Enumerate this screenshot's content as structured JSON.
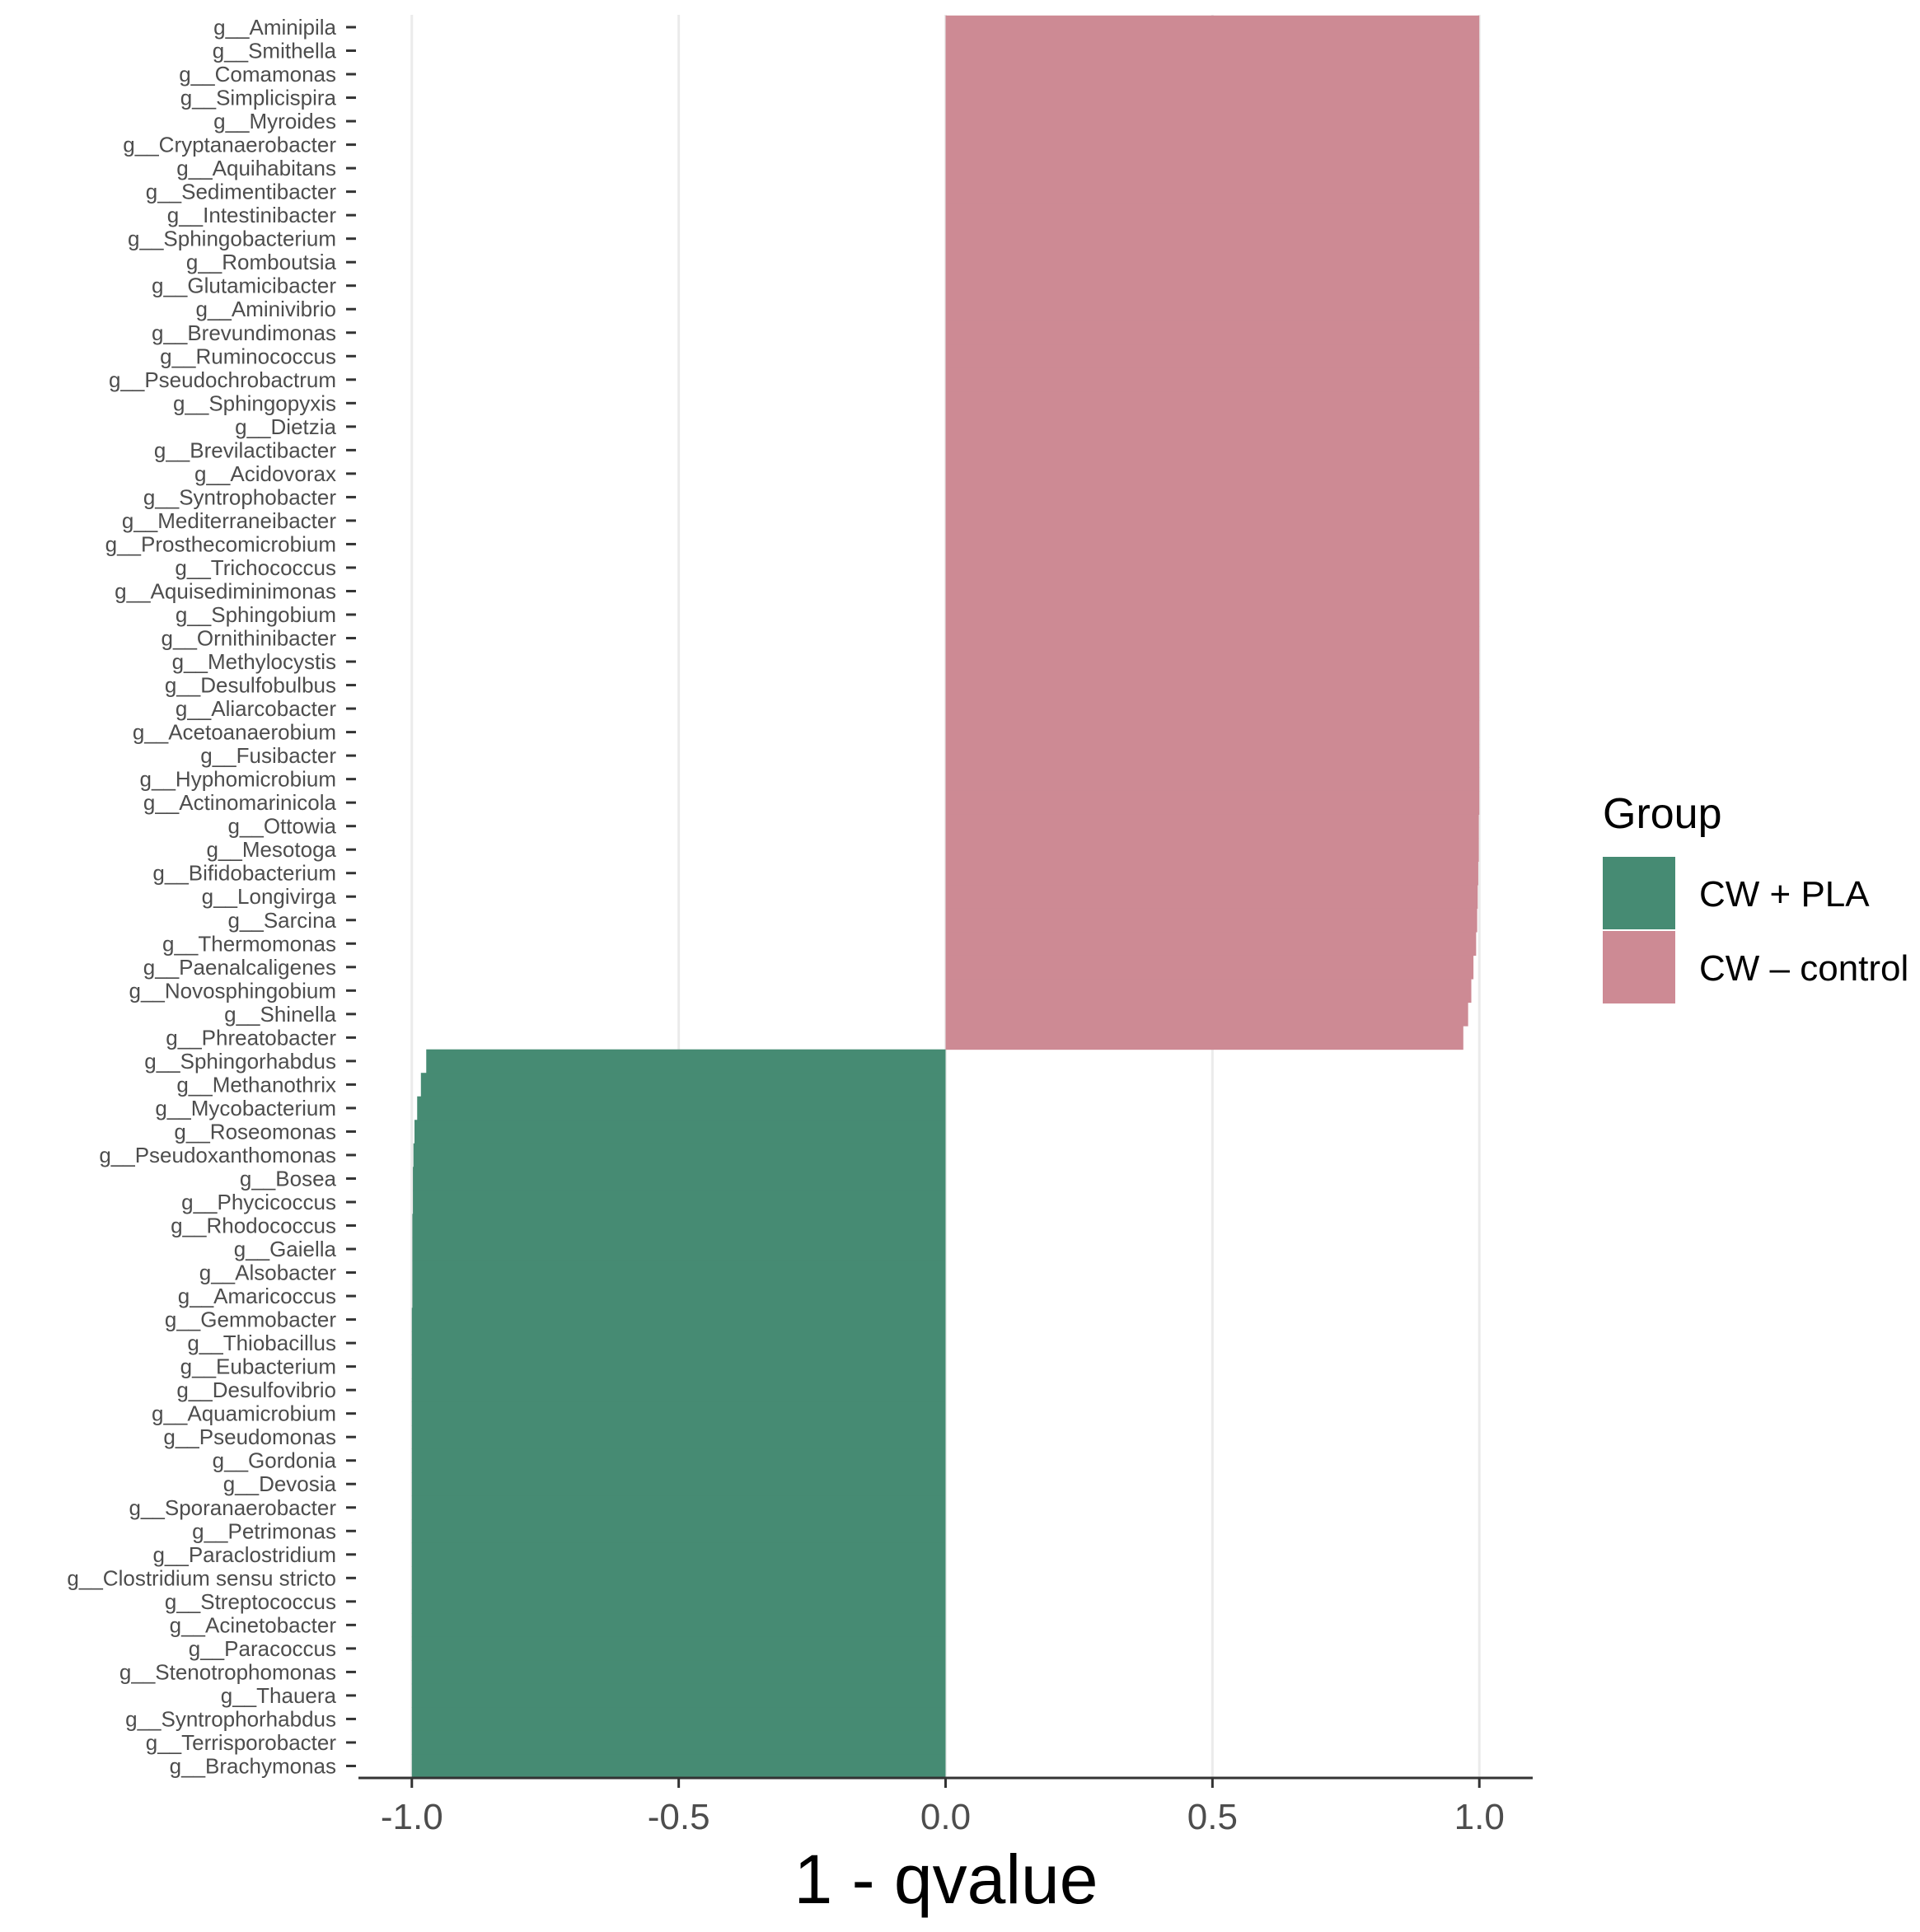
{
  "colors": {
    "cw_pla": "#468b73",
    "cw_control": "#cd8a94",
    "grid": "#ebebeb",
    "axis": "#333333",
    "tick_text": "#4d4d4d"
  },
  "chart_data": {
    "type": "bar",
    "orientation": "horizontal",
    "xlabel": "1 - qvalue",
    "ylabel": "",
    "xlim": [
      -1.1,
      1.1
    ],
    "xticks": [
      -1.0,
      -0.5,
      0.0,
      0.5,
      1.0
    ],
    "xtick_labels": [
      "-1.0",
      "-0.5",
      "0.0",
      "0.5",
      "1.0"
    ],
    "grid": true,
    "legend": {
      "title": "Group",
      "position": "right",
      "entries": [
        {
          "label": "CW + PLA",
          "color_key": "cw_pla"
        },
        {
          "label": "CW – control",
          "color_key": "cw_control"
        }
      ]
    },
    "categories": [
      "g__Aminipila",
      "g__Smithella",
      "g__Comamonas",
      "g__Simplicispira",
      "g__Myroides",
      "g__Cryptanaerobacter",
      "g__Aquihabitans",
      "g__Sedimentibacter",
      "g__Intestinibacter",
      "g__Sphingobacterium",
      "g__Romboutsia",
      "g__Glutamicibacter",
      "g__Aminivibrio",
      "g__Brevundimonas",
      "g__Ruminococcus",
      "g__Pseudochrobactrum",
      "g__Sphingopyxis",
      "g__Dietzia",
      "g__Brevilactibacter",
      "g__Acidovorax",
      "g__Syntrophobacter",
      "g__Mediterraneibacter",
      "g__Prosthecomicrobium",
      "g__Trichococcus",
      "g__Aquisediminimonas",
      "g__Sphingobium",
      "g__Ornithinibacter",
      "g__Methylocystis",
      "g__Desulfobulbus",
      "g__Aliarcobacter",
      "g__Acetoanaerobium",
      "g__Fusibacter",
      "g__Hyphomicrobium",
      "g__Actinomarinicola",
      "g__Ottowia",
      "g__Mesotoga",
      "g__Bifidobacterium",
      "g__Longivirga",
      "g__Sarcina",
      "g__Thermomonas",
      "g__Paenalcaligenes",
      "g__Novosphingobium",
      "g__Shinella",
      "g__Phreatobacter",
      "g__Sphingorhabdus",
      "g__Methanothrix",
      "g__Mycobacterium",
      "g__Roseomonas",
      "g__Pseudoxanthomonas",
      "g__Bosea",
      "g__Phycicoccus",
      "g__Rhodococcus",
      "g__Gaiella",
      "g__Alsobacter",
      "g__Amaricoccus",
      "g__Gemmobacter",
      "g__Thiobacillus",
      "g__Eubacterium",
      "g__Desulfovibrio",
      "g__Aquamicrobium",
      "g__Pseudomonas",
      "g__Gordonia",
      "g__Devosia",
      "g__Sporanaerobacter",
      "g__Petrimonas",
      "g__Paraclostridium",
      "g__Clostridium sensu stricto",
      "g__Streptococcus",
      "g__Acinetobacter",
      "g__Paracoccus",
      "g__Stenotrophomonas",
      "g__Thauera",
      "g__Syntrophorhabdus",
      "g__Terrisporobacter",
      "g__Brachymonas"
    ],
    "values": [
      1.0,
      1.0,
      1.0,
      1.0,
      1.0,
      1.0,
      1.0,
      1.0,
      1.0,
      1.0,
      1.0,
      1.0,
      1.0,
      1.0,
      1.0,
      1.0,
      1.0,
      1.0,
      1.0,
      1.0,
      1.0,
      1.0,
      1.0,
      1.0,
      1.0,
      1.0,
      1.0,
      1.0,
      1.0,
      1.0,
      1.0,
      1.0,
      1.0,
      1.0,
      0.999,
      0.999,
      0.998,
      0.997,
      0.996,
      0.994,
      0.989,
      0.985,
      0.979,
      0.97,
      -0.973,
      -0.983,
      -0.99,
      -0.995,
      -0.997,
      -0.998,
      -0.998,
      -0.999,
      -0.999,
      -0.999,
      -0.999,
      -1.0,
      -1.0,
      -1.0,
      -1.0,
      -1.0,
      -1.0,
      -1.0,
      -1.0,
      -1.0,
      -1.0,
      -1.0,
      -1.0,
      -1.0,
      -1.0,
      -1.0,
      -1.0,
      -1.0,
      -1.0,
      -1.0,
      -1.0
    ],
    "groups": [
      "CW – control",
      "CW – control",
      "CW – control",
      "CW – control",
      "CW – control",
      "CW – control",
      "CW – control",
      "CW – control",
      "CW – control",
      "CW – control",
      "CW – control",
      "CW – control",
      "CW – control",
      "CW – control",
      "CW – control",
      "CW – control",
      "CW – control",
      "CW – control",
      "CW – control",
      "CW – control",
      "CW – control",
      "CW – control",
      "CW – control",
      "CW – control",
      "CW – control",
      "CW – control",
      "CW – control",
      "CW – control",
      "CW – control",
      "CW – control",
      "CW – control",
      "CW – control",
      "CW – control",
      "CW – control",
      "CW – control",
      "CW – control",
      "CW – control",
      "CW – control",
      "CW – control",
      "CW – control",
      "CW – control",
      "CW – control",
      "CW – control",
      "CW – control",
      "CW + PLA",
      "CW + PLA",
      "CW + PLA",
      "CW + PLA",
      "CW + PLA",
      "CW + PLA",
      "CW + PLA",
      "CW + PLA",
      "CW + PLA",
      "CW + PLA",
      "CW + PLA",
      "CW + PLA",
      "CW + PLA",
      "CW + PLA",
      "CW + PLA",
      "CW + PLA",
      "CW + PLA",
      "CW + PLA",
      "CW + PLA",
      "CW + PLA",
      "CW + PLA",
      "CW + PLA",
      "CW + PLA",
      "CW + PLA",
      "CW + PLA",
      "CW + PLA",
      "CW + PLA",
      "CW + PLA",
      "CW + PLA",
      "CW + PLA",
      "CW + PLA"
    ]
  }
}
